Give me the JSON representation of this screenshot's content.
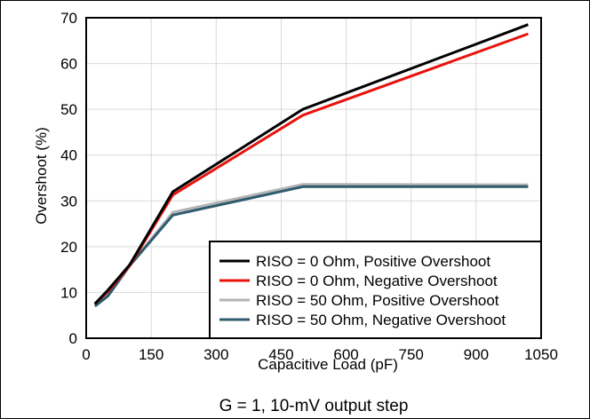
{
  "chart_data": {
    "type": "line",
    "title": "",
    "caption": "G = 1, 10-mV output step",
    "xlabel": "Capacitive Load (pF)",
    "ylabel": "Overshoot (%)",
    "xlim": [
      0,
      1050
    ],
    "ylim": [
      0,
      70
    ],
    "xticks": [
      "0",
      "150",
      "300",
      "450",
      "600",
      "750",
      "900",
      "1050"
    ],
    "yticks": [
      "0",
      "10",
      "20",
      "30",
      "40",
      "50",
      "60",
      "70"
    ],
    "grid": true,
    "legend_position": "bottom-right",
    "series": [
      {
        "name": "RISO = 0 Ohm, Positive Overshoot",
        "color": "#000000",
        "x": [
          20,
          50,
          100,
          200,
          500,
          1020
        ],
        "y": [
          7.5,
          10.5,
          16,
          32,
          50,
          68.5
        ]
      },
      {
        "name": "RISO = 0 Ohm, Negative Overshoot",
        "color": "#e8120c",
        "x": [
          20,
          50,
          100,
          200,
          500,
          1020
        ],
        "y": [
          7.5,
          10.2,
          15.8,
          31.3,
          48.7,
          66.5
        ]
      },
      {
        "name": "RISO = 50 Ohm, Positive Overshoot",
        "color": "#b4b4b4",
        "x": [
          20,
          50,
          100,
          200,
          500,
          1020
        ],
        "y": [
          7.3,
          9.6,
          15.8,
          27.5,
          33.6,
          33.5
        ]
      },
      {
        "name": "RISO = 50 Ohm, Negative Overshoot",
        "color": "#2f5b6e",
        "x": [
          20,
          50,
          100,
          200,
          500,
          1020
        ],
        "y": [
          7.0,
          9.2,
          15.8,
          26.9,
          33.1,
          33.1
        ]
      }
    ]
  }
}
